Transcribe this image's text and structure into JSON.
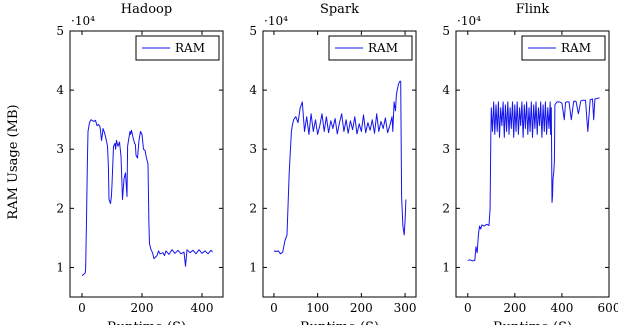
{
  "ylabel": "RAM Usage (MB)",
  "colors": {
    "series": "#1414ee",
    "axis": "#000000"
  },
  "chart_data": [
    {
      "type": "line",
      "title": "Hadoop",
      "xlabel": "Runtime (S)",
      "ylabel": "RAM Usage (MB)",
      "xlim": [
        -40,
        470
      ],
      "ylim": [
        5000,
        50000
      ],
      "xticks": [
        "0",
        "200",
        "400"
      ],
      "xtick_values": [
        0,
        200,
        400
      ],
      "yticks": [
        "1",
        "2",
        "3",
        "4",
        "5"
      ],
      "ytick_values": [
        10000,
        20000,
        30000,
        40000,
        50000
      ],
      "exponent_label": "·10⁴",
      "legend": "RAM",
      "legend_position": "top-right",
      "grid": false,
      "series": [
        {
          "name": "RAM",
          "x": [
            0,
            5,
            10,
            12,
            15,
            18,
            20,
            25,
            30,
            35,
            40,
            45,
            50,
            55,
            60,
            62,
            65,
            68,
            70,
            75,
            80,
            85,
            88,
            90,
            95,
            98,
            100,
            105,
            110,
            112,
            115,
            120,
            125,
            130,
            135,
            140,
            145,
            150,
            152,
            155,
            160,
            162,
            165,
            170,
            175,
            178,
            180,
            185,
            190,
            195,
            200,
            205,
            210,
            215,
            220,
            223,
            225,
            230,
            235,
            240,
            250,
            255,
            260,
            270,
            275,
            280,
            290,
            300,
            310,
            320,
            330,
            340,
            345,
            350,
            360,
            370,
            380,
            390,
            400,
            410,
            420,
            430,
            435
          ],
          "y": [
            8600,
            8800,
            9000,
            9500,
            18000,
            28000,
            33000,
            34500,
            35000,
            34800,
            34700,
            34900,
            34000,
            34200,
            33800,
            33000,
            31500,
            32500,
            33500,
            32800,
            31800,
            30500,
            27000,
            21500,
            20800,
            22000,
            24000,
            30500,
            31000,
            30000,
            31500,
            30500,
            31200,
            28800,
            21500,
            25000,
            26000,
            22000,
            30500,
            31500,
            33000,
            32500,
            33200,
            32000,
            31000,
            30800,
            29000,
            28500,
            31500,
            33000,
            32500,
            30000,
            29800,
            28500,
            27500,
            17500,
            14000,
            13000,
            12500,
            11500,
            12000,
            12800,
            12300,
            12500,
            12000,
            12800,
            12200,
            13000,
            12400,
            12900,
            12300,
            12600,
            10200,
            13000,
            12500,
            12900,
            12300,
            13000,
            12400,
            12800,
            12300,
            12900,
            12600
          ]
        }
      ]
    },
    {
      "type": "line",
      "title": "Spark",
      "xlabel": "Runtime (S)",
      "ylabel": "",
      "xlim": [
        -25,
        325
      ],
      "ylim": [
        5000,
        50000
      ],
      "xticks": [
        "0",
        "100",
        "200",
        "300"
      ],
      "xtick_values": [
        0,
        100,
        200,
        300
      ],
      "yticks": [
        "1",
        "2",
        "3",
        "4",
        "5"
      ],
      "ytick_values": [
        10000,
        20000,
        30000,
        40000,
        50000
      ],
      "exponent_label": "·10⁴",
      "legend": "RAM",
      "legend_position": "top-right",
      "grid": false,
      "series": [
        {
          "name": "RAM",
          "x": [
            0,
            5,
            10,
            15,
            20,
            25,
            30,
            35,
            40,
            42,
            45,
            50,
            55,
            60,
            65,
            70,
            75,
            80,
            85,
            90,
            95,
            100,
            105,
            110,
            115,
            120,
            125,
            130,
            135,
            140,
            145,
            150,
            155,
            160,
            165,
            170,
            175,
            180,
            185,
            190,
            195,
            200,
            205,
            210,
            215,
            220,
            225,
            230,
            235,
            240,
            245,
            250,
            255,
            260,
            265,
            270,
            272,
            275,
            278,
            280,
            282,
            285,
            288,
            290,
            292,
            295,
            298,
            300,
            302
          ],
          "y": [
            12800,
            12700,
            12800,
            12300,
            12600,
            14500,
            15500,
            26000,
            33000,
            34000,
            35000,
            35500,
            34500,
            37000,
            38000,
            33000,
            35500,
            32500,
            36000,
            33000,
            35000,
            32500,
            34000,
            36000,
            33000,
            35500,
            32800,
            34800,
            33500,
            35200,
            32600,
            34500,
            36000,
            33000,
            35000,
            32700,
            34800,
            33300,
            35500,
            32600,
            34300,
            33000,
            35800,
            32800,
            34500,
            33200,
            35000,
            32700,
            36000,
            33000,
            34700,
            33500,
            35300,
            32800,
            34000,
            35500,
            33000,
            38000,
            36500,
            39000,
            40000,
            41000,
            41500,
            41500,
            22000,
            17000,
            15500,
            18000,
            21500
          ]
        }
      ]
    },
    {
      "type": "line",
      "title": "Flink",
      "xlabel": "Runtime (S)",
      "ylabel": "",
      "xlim": [
        -50,
        600
      ],
      "ylim": [
        5000,
        50000
      ],
      "xticks": [
        "0",
        "200",
        "400",
        "600"
      ],
      "xtick_values": [
        0,
        200,
        400,
        600
      ],
      "yticks": [
        "1",
        "2",
        "3",
        "4",
        "5"
      ],
      "ytick_values": [
        10000,
        20000,
        30000,
        40000,
        50000
      ],
      "exponent_label": "·10⁴",
      "legend": "RAM",
      "legend_position": "top-right",
      "grid": false,
      "series": [
        {
          "name": "RAM",
          "x": [
            0,
            10,
            20,
            30,
            35,
            40,
            45,
            50,
            55,
            60,
            70,
            80,
            90,
            95,
            98,
            100,
            105,
            110,
            115,
            120,
            125,
            130,
            135,
            140,
            145,
            150,
            155,
            160,
            165,
            170,
            175,
            180,
            185,
            190,
            195,
            200,
            205,
            210,
            215,
            220,
            225,
            230,
            235,
            240,
            245,
            250,
            255,
            260,
            265,
            270,
            275,
            280,
            285,
            290,
            295,
            300,
            305,
            310,
            315,
            320,
            325,
            330,
            335,
            340,
            345,
            350,
            352,
            355,
            358,
            360,
            362,
            365,
            368,
            370,
            375,
            380,
            390,
            400,
            410,
            415,
            420,
            430,
            440,
            450,
            460,
            470,
            480,
            490,
            500,
            510,
            520,
            530,
            535,
            540,
            550,
            560
          ],
          "y": [
            11200,
            11300,
            11100,
            11200,
            13500,
            12500,
            15500,
            17000,
            16500,
            17200,
            17000,
            17300,
            17100,
            20000,
            32000,
            37000,
            33000,
            38000,
            32500,
            37500,
            33000,
            38000,
            32000,
            37000,
            34000,
            38000,
            32000,
            37500,
            33000,
            38000,
            32500,
            37000,
            33500,
            38000,
            32000,
            37500,
            33000,
            38000,
            32500,
            37000,
            34000,
            38000,
            32000,
            37500,
            33500,
            38000,
            32500,
            37000,
            33000,
            38000,
            32000,
            37500,
            33500,
            38000,
            32500,
            37000,
            34000,
            38000,
            32000,
            37500,
            33000,
            38000,
            32500,
            37000,
            33500,
            38000,
            32500,
            37000,
            21000,
            22000,
            25000,
            26000,
            28000,
            37500,
            37800,
            38000,
            38000,
            37800,
            35000,
            37900,
            38000,
            38000,
            35000,
            38100,
            38100,
            36000,
            38200,
            38300,
            38300,
            33000,
            38400,
            38500,
            35000,
            38500,
            38600,
            38700
          ]
        }
      ]
    }
  ]
}
